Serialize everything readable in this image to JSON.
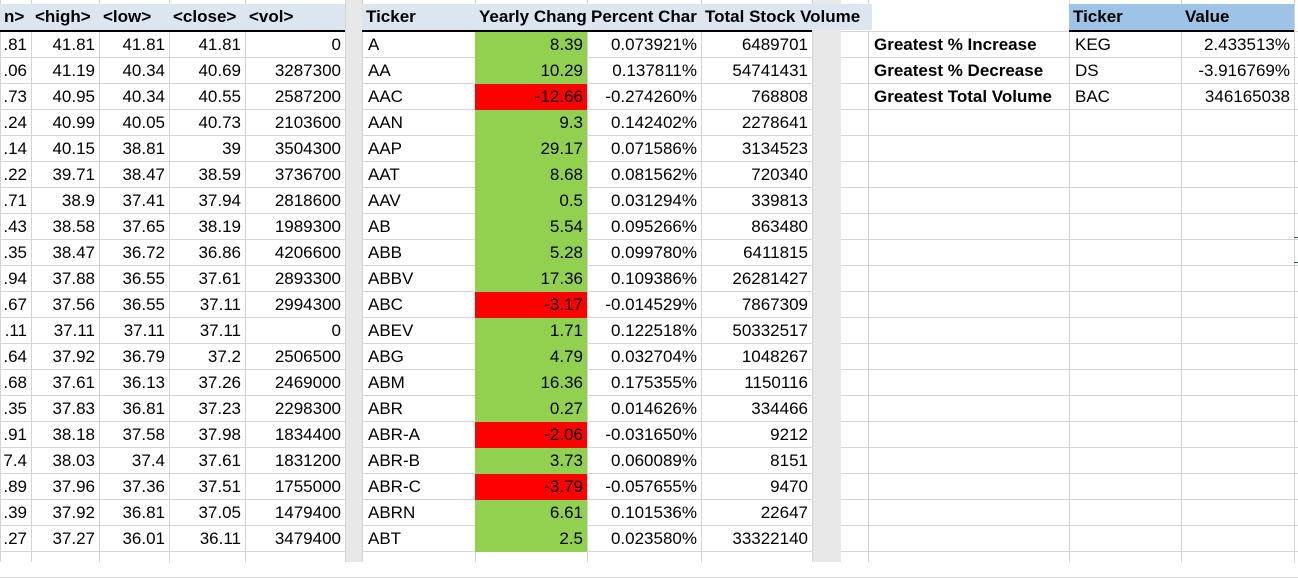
{
  "left_headers": [
    "n>",
    "<high>",
    "<low>",
    "<close>",
    "<vol>"
  ],
  "left_rows": [
    [
      ".81",
      "41.81",
      "41.81",
      "41.81",
      "0"
    ],
    [
      ".06",
      "41.19",
      "40.34",
      "40.69",
      "3287300"
    ],
    [
      ".73",
      "40.95",
      "40.34",
      "40.55",
      "2587200"
    ],
    [
      ".24",
      "40.99",
      "40.05",
      "40.73",
      "2103600"
    ],
    [
      ".14",
      "40.15",
      "38.81",
      "39",
      "3504300"
    ],
    [
      ".22",
      "39.71",
      "38.47",
      "38.59",
      "3736700"
    ],
    [
      ".71",
      "38.9",
      "37.41",
      "37.94",
      "2818600"
    ],
    [
      ".43",
      "38.58",
      "37.65",
      "38.19",
      "1989300"
    ],
    [
      ".35",
      "38.47",
      "36.72",
      "36.86",
      "4206600"
    ],
    [
      ".94",
      "37.88",
      "36.55",
      "37.61",
      "2893300"
    ],
    [
      ".67",
      "37.56",
      "36.55",
      "37.11",
      "2994300"
    ],
    [
      ".11",
      "37.11",
      "37.11",
      "37.11",
      "0"
    ],
    [
      ".64",
      "37.92",
      "36.79",
      "37.2",
      "2506500"
    ],
    [
      ".68",
      "37.61",
      "36.13",
      "37.26",
      "2469000"
    ],
    [
      ".35",
      "37.83",
      "36.81",
      "37.23",
      "2298300"
    ],
    [
      ".91",
      "38.18",
      "37.58",
      "37.98",
      "1834400"
    ],
    [
      "7.4",
      "38.03",
      "37.4",
      "37.61",
      "1831200"
    ],
    [
      ".89",
      "37.96",
      "37.36",
      "37.51",
      "1755000"
    ],
    [
      ".39",
      "37.92",
      "36.81",
      "37.05",
      "1479400"
    ],
    [
      ".27",
      "37.27",
      "36.01",
      "36.11",
      "3479400"
    ]
  ],
  "summary_headers": [
    "Ticker",
    "Yearly Chang",
    "Percent Char",
    "Total Stock Volume"
  ],
  "summary_rows": [
    {
      "ticker": "A",
      "change": "8.39",
      "percent": "0.073921%",
      "volume": "6489701",
      "status": "positive"
    },
    {
      "ticker": "AA",
      "change": "10.29",
      "percent": "0.137811%",
      "volume": "54741431",
      "status": "positive"
    },
    {
      "ticker": "AAC",
      "change": "-12.66",
      "percent": "-0.274260%",
      "volume": "768808",
      "status": "negative"
    },
    {
      "ticker": "AAN",
      "change": "9.3",
      "percent": "0.142402%",
      "volume": "2278641",
      "status": "positive"
    },
    {
      "ticker": "AAP",
      "change": "29.17",
      "percent": "0.071586%",
      "volume": "3134523",
      "status": "positive"
    },
    {
      "ticker": "AAT",
      "change": "8.68",
      "percent": "0.081562%",
      "volume": "720340",
      "status": "positive"
    },
    {
      "ticker": "AAV",
      "change": "0.5",
      "percent": "0.031294%",
      "volume": "339813",
      "status": "positive"
    },
    {
      "ticker": "AB",
      "change": "5.54",
      "percent": "0.095266%",
      "volume": "863480",
      "status": "positive"
    },
    {
      "ticker": "ABB",
      "change": "5.28",
      "percent": "0.099780%",
      "volume": "6411815",
      "status": "positive"
    },
    {
      "ticker": "ABBV",
      "change": "17.36",
      "percent": "0.109386%",
      "volume": "26281427",
      "status": "positive"
    },
    {
      "ticker": "ABC",
      "change": "-3.17",
      "percent": "-0.014529%",
      "volume": "7867309",
      "status": "negative"
    },
    {
      "ticker": "ABEV",
      "change": "1.71",
      "percent": "0.122518%",
      "volume": "50332517",
      "status": "positive"
    },
    {
      "ticker": "ABG",
      "change": "4.79",
      "percent": "0.032704%",
      "volume": "1048267",
      "status": "positive"
    },
    {
      "ticker": "ABM",
      "change": "16.36",
      "percent": "0.175355%",
      "volume": "1150116",
      "status": "positive"
    },
    {
      "ticker": "ABR",
      "change": "0.27",
      "percent": "0.014626%",
      "volume": "334466",
      "status": "positive"
    },
    {
      "ticker": "ABR-A",
      "change": "-2.06",
      "percent": "-0.031650%",
      "volume": "9212",
      "status": "negative"
    },
    {
      "ticker": "ABR-B",
      "change": "3.73",
      "percent": "0.060089%",
      "volume": "8151",
      "status": "positive"
    },
    {
      "ticker": "ABR-C",
      "change": "-3.79",
      "percent": "-0.057655%",
      "volume": "9470",
      "status": "negative"
    },
    {
      "ticker": "ABRN",
      "change": "6.61",
      "percent": "0.101536%",
      "volume": "22647",
      "status": "positive"
    },
    {
      "ticker": "ABT",
      "change": "2.5",
      "percent": "0.023580%",
      "volume": "33322140",
      "status": "positive"
    }
  ],
  "greatest_headers": [
    "Ticker",
    "Value"
  ],
  "greatest_rows": [
    {
      "label": "Greatest % Increase",
      "ticker": "KEG",
      "value": "2.433513%"
    },
    {
      "label": "Greatest % Decrease",
      "ticker": "DS",
      "value": "-3.916769%"
    },
    {
      "label": "Greatest Total Volume",
      "ticker": "BAC",
      "value": "346165038"
    }
  ],
  "colors": {
    "positive": "#92d050",
    "negative": "#ff0000",
    "header_light": "#dce6f1",
    "header_strong": "#9dc3e6",
    "gridline": "#d4d4d4"
  }
}
